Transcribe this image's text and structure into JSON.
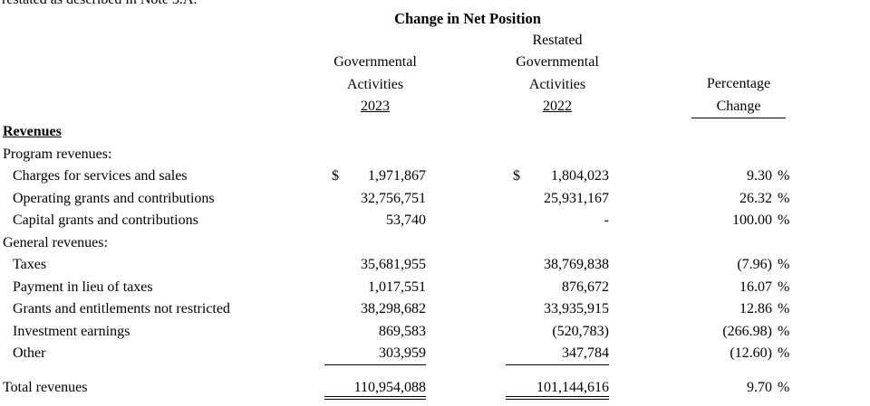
{
  "note_line": "restated as described in Note 5.A.",
  "title": "Change in Net Position",
  "currency_symbol": "$",
  "percent_symbol": "%",
  "header": {
    "col2023": {
      "line1": "Governmental",
      "line2": "Activities",
      "year": "2023"
    },
    "col2022": {
      "line0": "Restated",
      "line1": "Governmental",
      "line2": "Activities",
      "year": "2022"
    },
    "colpct": {
      "line1": "Percentage",
      "line2": "Change"
    }
  },
  "rows": [
    {
      "label": "Revenues",
      "type": "section-heading"
    },
    {
      "label": "Program revenues:",
      "type": "group"
    },
    {
      "label": "Charges for services and sales",
      "type": "item",
      "dollar": true,
      "v2023": "1,971,867",
      "v2022": "1,804,023",
      "pct": "9.30"
    },
    {
      "label": "Operating grants and contributions",
      "type": "item",
      "v2023": "32,756,751",
      "v2022": "25,931,167",
      "pct": "26.32"
    },
    {
      "label": "Capital grants and contributions",
      "type": "item",
      "v2023": "53,740",
      "v2022": "-",
      "pct": "100.00"
    },
    {
      "label": "General revenues:",
      "type": "group"
    },
    {
      "label": "Taxes",
      "type": "item",
      "v2023": "35,681,955",
      "v2022": "38,769,838",
      "pct": "(7.96)"
    },
    {
      "label": "Payment in lieu of taxes",
      "type": "item",
      "v2023": "1,017,551",
      "v2022": "876,672",
      "pct": "16.07"
    },
    {
      "label": "Grants and entitlements not restricted",
      "type": "item",
      "v2023": "38,298,682",
      "v2022": "33,935,915",
      "pct": "12.86"
    },
    {
      "label": "Investment earnings",
      "type": "item",
      "v2023": "869,583",
      "v2022": "(520,783)",
      "pct": "(266.98)"
    },
    {
      "label": "Other",
      "type": "item",
      "v2023": "303,959",
      "v2022": "347,784",
      "pct": "(12.60)",
      "rule": "single"
    },
    {
      "label": "Total revenues",
      "type": "total",
      "v2023": "110,954,088",
      "v2022": "101,144,616",
      "pct": "9.70",
      "rule": "double",
      "gap": true
    }
  ]
}
